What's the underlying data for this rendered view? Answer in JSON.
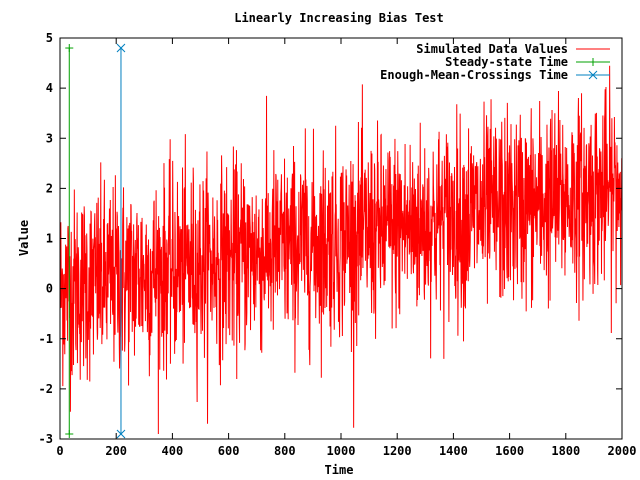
{
  "chart_data": {
    "type": "line",
    "title": "Linearly Increasing Bias Test",
    "xlabel": "Time",
    "ylabel": "Value",
    "xlim": [
      0,
      2000
    ],
    "ylim": [
      -3,
      5
    ],
    "x_ticks": [
      "0",
      "200",
      "400",
      "600",
      "800",
      "1000",
      "1200",
      "1400",
      "1600",
      "1800",
      "2000"
    ],
    "y_ticks": [
      "-3",
      "-2",
      "-1",
      "0",
      "1",
      "2",
      "3",
      "4",
      "5"
    ],
    "legend_position": "top-right",
    "grid": false,
    "series": [
      {
        "name": "Simulated Data Values",
        "color": "#ff0000",
        "style": "noisy line",
        "n_points": 2000,
        "mean_trend": [
          [
            0,
            0.0
          ],
          [
            1000,
            1.0
          ],
          [
            2000,
            2.0
          ]
        ],
        "approx_range": [
          -2.9,
          4.6
        ]
      },
      {
        "name": "Steady-state Time",
        "color": "#00a000",
        "marker": "plus",
        "x": [
          33,
          33
        ],
        "y": [
          -2.9,
          4.8
        ]
      },
      {
        "name": "Enough-Mean-Crossings Time",
        "color": "#0080c0",
        "marker": "x",
        "x": [
          217,
          217
        ],
        "y": [
          -2.9,
          4.8
        ]
      }
    ]
  }
}
